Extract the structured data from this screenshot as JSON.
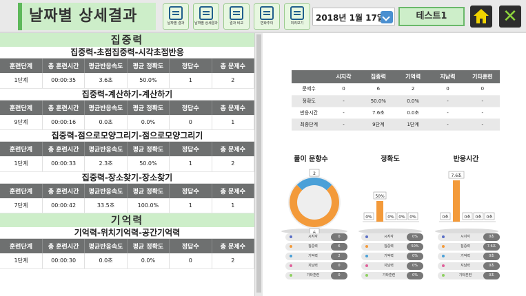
{
  "header": {
    "title": "날짜별 상세결과",
    "nav": [
      "날짜별 결과",
      "날짜별 상세결과",
      "결과 비교",
      "변화추이",
      "미리보기"
    ],
    "date": "2018년 1월 17일",
    "user": "테스트1",
    "close_glyph": "✕"
  },
  "columns": [
    "훈련단계",
    "총 훈련시간",
    "평균반응속도",
    "평균 정확도",
    "정답수",
    "총 문제수"
  ],
  "sections": [
    {
      "title": "집중력",
      "tables": [
        {
          "subtitle": "집중력-초점집중력-시각초점반응",
          "row": [
            "1단계",
            "00:00:35",
            "3.6초",
            "50.0%",
            "1",
            "2"
          ]
        },
        {
          "subtitle": "집중력-계산하기-계산하기",
          "row": [
            "9단계",
            "00:00:16",
            "0.0초",
            "0.0%",
            "0",
            "1"
          ]
        },
        {
          "subtitle": "집중력-점으로모양그리기-점으로모양그리기",
          "row": [
            "1단계",
            "00:00:33",
            "2.3초",
            "50.0%",
            "1",
            "2"
          ]
        },
        {
          "subtitle": "집중력-장소찾기-장소찾기",
          "row": [
            "7단계",
            "00:00:42",
            "33.5초",
            "100.0%",
            "1",
            "1"
          ]
        }
      ]
    },
    {
      "title": "기억력",
      "tables": [
        {
          "subtitle": "기억력-위치기억력-공간기억력",
          "row": [
            "1단계",
            "00:00:30",
            "0.0초",
            "0.0%",
            "0",
            "2"
          ]
        }
      ]
    }
  ],
  "summary": {
    "header": [
      "",
      "시지각",
      "집중력",
      "기억력",
      "지남력",
      "기타훈련"
    ],
    "rows": [
      [
        "문제수",
        "0",
        "6",
        "2",
        "0",
        "0"
      ],
      [
        "정확도",
        "-",
        "50.0%",
        "0.0%",
        "-",
        "-"
      ],
      [
        "반응시간",
        "-",
        "7.6초",
        "0.0초",
        "-",
        "-"
      ],
      [
        "최종단계",
        "-",
        "9단계",
        "1단계",
        "-",
        "-"
      ]
    ]
  },
  "charts": {
    "titles": [
      "풀이 문항수",
      "정확도",
      "반응시간"
    ],
    "categories": [
      "시지각",
      "집중력",
      "기억력",
      "지남력",
      "기타훈련"
    ],
    "dot_colors": [
      "#5a6fc6",
      "#f39a3a",
      "#4aa0d8",
      "#e0609a",
      "#8ed060"
    ],
    "legend_values": [
      [
        "0",
        "6",
        "2",
        "0",
        "0"
      ],
      [
        "0%",
        "50%",
        "0%",
        "0%",
        "0%"
      ],
      [
        "0초",
        "7.6초",
        "0초",
        "0초",
        "0초"
      ]
    ]
  },
  "chart_data": [
    {
      "type": "pie",
      "title": "풀이 문항수",
      "categories": [
        "시지각",
        "집중력",
        "기억력",
        "지남력",
        "기타훈련"
      ],
      "values": [
        0,
        6,
        2,
        0,
        0
      ],
      "labels": [
        "",
        "6",
        "2",
        "",
        ""
      ],
      "colors": [
        "#5a6fc6",
        "#f39a3a",
        "#4aa0d8",
        "#e0609a",
        "#8ed060"
      ]
    },
    {
      "type": "bar",
      "title": "정확도",
      "categories": [
        "시지각",
        "집중력",
        "기억력",
        "지남력",
        "기타훈련"
      ],
      "values": [
        0,
        50,
        0,
        0,
        0
      ],
      "labels": [
        "0%",
        "50%",
        "0%",
        "0%",
        "0%"
      ],
      "ylim": [
        0,
        100
      ],
      "color": "#f39a3a"
    },
    {
      "type": "bar",
      "title": "반응시간",
      "categories": [
        "시지각",
        "집중력",
        "기억력",
        "지남력",
        "기타훈련"
      ],
      "values": [
        0,
        7.6,
        0,
        0,
        0
      ],
      "labels": [
        "0초",
        "7.6초",
        "0초",
        "0초",
        "0초"
      ],
      "ylim": [
        0,
        7.6
      ],
      "color": "#f39a3a"
    }
  ]
}
